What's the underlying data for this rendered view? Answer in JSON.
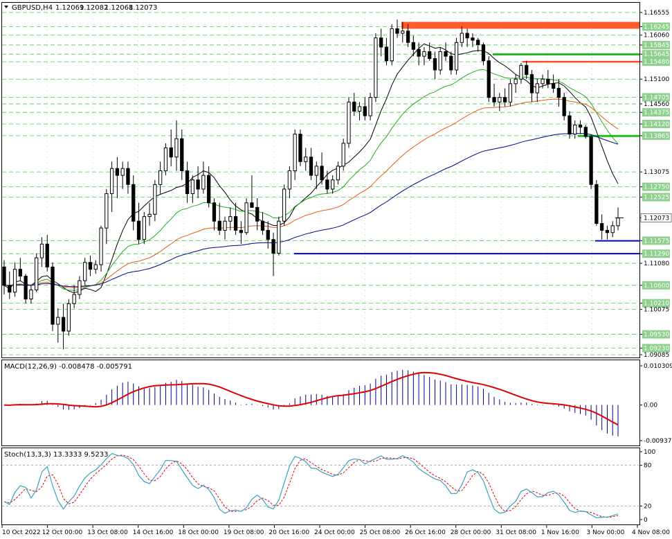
{
  "header": {
    "symbol": "GBPUSD,H4",
    "open": "1.12069",
    "high": "1.12082",
    "low": "1.12068",
    "close": "1.12073"
  },
  "macd_label": "MACD(12,26,9) -0.008478 -0.005791",
  "stoch_label": "Stoch(13,3,3) 13.3333 9.5233",
  "colors": {
    "candle": "#000000",
    "grid": "#00b000",
    "ma_fast": "#000000",
    "ma_mid": "#22aa22",
    "ma_slow_red": "#e85a1a",
    "ma_blue": "#00008b",
    "level_res": "#ff5a2a",
    "level_green": "#22bb22",
    "level_red": "#ff4a2a",
    "level_blue": "#0000cc",
    "macd_signal": "#e00000",
    "stoch_main": "#3aa0c0",
    "stoch_signal": "#e00000"
  },
  "chart_data": [
    {
      "type": "candlestick",
      "name": "GBPUSD,H4",
      "price_scale_labels": [
        "1.16555",
        "1.16245",
        "1.16060",
        "1.15845",
        "1.15645",
        "1.15480",
        "1.15100",
        "1.14705",
        "1.14560",
        "1.14375",
        "1.14120",
        "1.13865",
        "1.13075",
        "1.12750",
        "1.12525",
        "1.12073",
        "1.11575",
        "1.11290",
        "1.11080",
        "1.10600",
        "1.10210",
        "1.10075",
        "1.09530",
        "1.09230",
        "1.09085"
      ],
      "highlighted_labels": [
        "1.16245",
        "1.15845",
        "1.15645",
        "1.15480",
        "1.14705",
        "1.14375",
        "1.14120",
        "1.13865",
        "1.12750",
        "1.12525",
        "1.11575",
        "1.11290",
        "1.10600",
        "1.10210",
        "1.09530",
        "1.09230"
      ],
      "current_price": "1.12073",
      "x_tick_labels": [
        "10 Oct 2022",
        "12 Oct 00:00",
        "13 Oct 08:00",
        "14 Oct 16:00",
        "18 Oct 00:00",
        "19 Oct 08:00",
        "20 Oct 16:00",
        "24 Oct 00:00",
        "25 Oct 08:00",
        "26 Oct 16:00",
        "28 Oct 00:00",
        "31 Oct 08:00",
        "1 Nov 16:00",
        "3 Nov 00:00",
        "4 Nov 08:00"
      ],
      "ylim": [
        1.09085,
        1.16555
      ],
      "candles_ohlc": [
        [
          1.11,
          1.1115,
          1.104,
          1.106
        ],
        [
          1.106,
          1.109,
          1.103,
          1.1045
        ],
        [
          1.1045,
          1.111,
          1.1035,
          1.1095
        ],
        [
          1.1095,
          1.112,
          1.107,
          1.108
        ],
        [
          1.108,
          1.1085,
          1.102,
          1.103
        ],
        [
          1.103,
          1.106,
          1.102,
          1.105
        ],
        [
          1.105,
          1.113,
          1.1045,
          1.112
        ],
        [
          1.112,
          1.1165,
          1.11,
          1.115
        ],
        [
          1.115,
          1.117,
          1.109,
          1.11
        ],
        [
          1.11,
          1.111,
          1.096,
          1.0975
        ],
        [
          1.0975,
          1.101,
          1.0935,
          1.099
        ],
        [
          1.099,
          1.102,
          1.092,
          1.096
        ],
        [
          1.096,
          1.103,
          1.095,
          1.102
        ],
        [
          1.102,
          1.106,
          1.101,
          1.104
        ],
        [
          1.104,
          1.108,
          1.103,
          1.107
        ],
        [
          1.107,
          1.112,
          1.106,
          1.111
        ],
        [
          1.111,
          1.1125,
          1.108,
          1.1095
        ],
        [
          1.1095,
          1.1115,
          1.1085,
          1.1105
        ],
        [
          1.1105,
          1.119,
          1.109,
          1.1185
        ],
        [
          1.1185,
          1.127,
          1.115,
          1.126
        ],
        [
          1.126,
          1.133,
          1.122,
          1.1315
        ],
        [
          1.1315,
          1.134,
          1.125,
          1.13
        ],
        [
          1.13,
          1.133,
          1.127,
          1.1315
        ],
        [
          1.1315,
          1.133,
          1.126,
          1.128
        ],
        [
          1.128,
          1.13,
          1.118,
          1.12
        ],
        [
          1.12,
          1.124,
          1.115,
          1.116
        ],
        [
          1.116,
          1.122,
          1.115,
          1.121
        ],
        [
          1.121,
          1.124,
          1.119,
          1.1215
        ],
        [
          1.1215,
          1.129,
          1.12,
          1.128
        ],
        [
          1.128,
          1.133,
          1.126,
          1.131
        ],
        [
          1.131,
          1.137,
          1.13,
          1.136
        ],
        [
          1.136,
          1.14,
          1.132,
          1.134
        ],
        [
          1.134,
          1.142,
          1.131,
          1.138
        ],
        [
          1.138,
          1.14,
          1.129,
          1.131
        ],
        [
          1.131,
          1.133,
          1.124,
          1.126
        ],
        [
          1.126,
          1.13,
          1.124,
          1.129
        ],
        [
          1.129,
          1.132,
          1.125,
          1.127
        ],
        [
          1.127,
          1.133,
          1.126,
          1.13
        ],
        [
          1.13,
          1.132,
          1.123,
          1.124
        ],
        [
          1.124,
          1.125,
          1.118,
          1.12
        ],
        [
          1.12,
          1.124,
          1.117,
          1.118
        ],
        [
          1.118,
          1.121,
          1.116,
          1.12
        ],
        [
          1.12,
          1.123,
          1.118,
          1.121
        ],
        [
          1.121,
          1.124,
          1.117,
          1.118
        ],
        [
          1.118,
          1.12,
          1.115,
          1.1175
        ],
        [
          1.1175,
          1.125,
          1.117,
          1.124
        ],
        [
          1.124,
          1.13,
          1.123,
          1.123
        ],
        [
          1.123,
          1.125,
          1.118,
          1.12
        ],
        [
          1.12,
          1.122,
          1.117,
          1.118
        ],
        [
          1.118,
          1.12,
          1.114,
          1.116
        ],
        [
          1.116,
          1.1175,
          1.108,
          1.113
        ],
        [
          1.113,
          1.121,
          1.1125,
          1.12
        ],
        [
          1.12,
          1.128,
          1.119,
          1.127
        ],
        [
          1.127,
          1.132,
          1.125,
          1.131
        ],
        [
          1.131,
          1.14,
          1.129,
          1.139
        ],
        [
          1.139,
          1.14,
          1.132,
          1.133
        ],
        [
          1.133,
          1.136,
          1.131,
          1.134
        ],
        [
          1.134,
          1.136,
          1.129,
          1.13
        ],
        [
          1.13,
          1.133,
          1.127,
          1.132
        ],
        [
          1.132,
          1.135,
          1.128,
          1.129
        ],
        [
          1.129,
          1.131,
          1.126,
          1.127
        ],
        [
          1.127,
          1.13,
          1.126,
          1.129
        ],
        [
          1.129,
          1.133,
          1.128,
          1.132
        ],
        [
          1.132,
          1.138,
          1.131,
          1.137
        ],
        [
          1.137,
          1.147,
          1.136,
          1.146
        ],
        [
          1.146,
          1.148,
          1.143,
          1.144
        ],
        [
          1.144,
          1.146,
          1.142,
          1.145
        ],
        [
          1.145,
          1.147,
          1.142,
          1.143
        ],
        [
          1.143,
          1.148,
          1.142,
          1.147
        ],
        [
          1.147,
          1.161,
          1.146,
          1.16
        ],
        [
          1.16,
          1.162,
          1.156,
          1.158
        ],
        [
          1.158,
          1.16,
          1.154,
          1.155
        ],
        [
          1.155,
          1.163,
          1.154,
          1.162
        ],
        [
          1.162,
          1.164,
          1.16,
          1.161
        ],
        [
          1.161,
          1.1635,
          1.159,
          1.1615
        ],
        [
          1.1615,
          1.163,
          1.158,
          1.159
        ],
        [
          1.159,
          1.1605,
          1.156,
          1.1575
        ],
        [
          1.1575,
          1.159,
          1.154,
          1.156
        ],
        [
          1.156,
          1.158,
          1.154,
          1.157
        ],
        [
          1.157,
          1.159,
          1.155,
          1.1555
        ],
        [
          1.1555,
          1.157,
          1.151,
          1.153
        ],
        [
          1.153,
          1.158,
          1.152,
          1.157
        ],
        [
          1.157,
          1.159,
          1.155,
          1.156
        ],
        [
          1.156,
          1.157,
          1.152,
          1.153
        ],
        [
          1.153,
          1.16,
          1.152,
          1.159
        ],
        [
          1.159,
          1.1625,
          1.158,
          1.161
        ],
        [
          1.161,
          1.162,
          1.158,
          1.16
        ],
        [
          1.16,
          1.161,
          1.158,
          1.1595
        ],
        [
          1.1595,
          1.16,
          1.157,
          1.1585
        ],
        [
          1.1585,
          1.159,
          1.154,
          1.155
        ],
        [
          1.155,
          1.156,
          1.146,
          1.147
        ],
        [
          1.147,
          1.15,
          1.145,
          1.146
        ],
        [
          1.146,
          1.148,
          1.144,
          1.147
        ],
        [
          1.147,
          1.149,
          1.145,
          1.146
        ],
        [
          1.146,
          1.151,
          1.145,
          1.15
        ],
        [
          1.15,
          1.152,
          1.148,
          1.151
        ],
        [
          1.151,
          1.1545,
          1.15,
          1.154
        ],
        [
          1.154,
          1.155,
          1.151,
          1.152
        ],
        [
          1.152,
          1.153,
          1.146,
          1.148
        ],
        [
          1.148,
          1.151,
          1.146,
          1.15
        ],
        [
          1.15,
          1.152,
          1.149,
          1.151
        ],
        [
          1.151,
          1.153,
          1.149,
          1.15
        ],
        [
          1.15,
          1.152,
          1.148,
          1.149
        ],
        [
          1.149,
          1.151,
          1.145,
          1.147
        ],
        [
          1.147,
          1.148,
          1.142,
          1.143
        ],
        [
          1.143,
          1.144,
          1.138,
          1.139
        ],
        [
          1.139,
          1.142,
          1.138,
          1.141
        ],
        [
          1.141,
          1.142,
          1.139,
          1.1405
        ],
        [
          1.1405,
          1.141,
          1.138,
          1.1385
        ],
        [
          1.1385,
          1.139,
          1.127,
          1.128
        ],
        [
          1.128,
          1.129,
          1.119,
          1.1195
        ],
        [
          1.1195,
          1.1215,
          1.116,
          1.118
        ],
        [
          1.118,
          1.119,
          1.116,
          1.1175
        ],
        [
          1.1175,
          1.12,
          1.1165,
          1.119
        ],
        [
          1.119,
          1.123,
          1.118,
          1.1207
        ]
      ],
      "levels": [
        {
          "kind": "resistance_zone",
          "from": 1.162,
          "to": 1.1635
        },
        {
          "kind": "green_line",
          "value": 1.1564
        },
        {
          "kind": "red_line",
          "value": 1.1548
        },
        {
          "kind": "green_line",
          "value": 1.1386
        },
        {
          "kind": "blue_line",
          "value": 1.1157
        },
        {
          "kind": "blue_line",
          "value": 1.1129
        }
      ]
    },
    {
      "type": "bar",
      "name": "MACD(12,26,9)",
      "main_value": "-0.008478",
      "signal_value": "-0.005791",
      "scale_labels": [
        "0.010309",
        "0.00",
        "-0.009373"
      ],
      "ylim": [
        -0.009373,
        0.010309
      ]
    },
    {
      "type": "line",
      "name": "Stoch(13,3,3)",
      "main_value": "13.3333",
      "signal_value": "9.5233",
      "scale_labels": [
        "100",
        "80",
        "20",
        "0"
      ],
      "ylim": [
        0,
        100
      ]
    }
  ]
}
